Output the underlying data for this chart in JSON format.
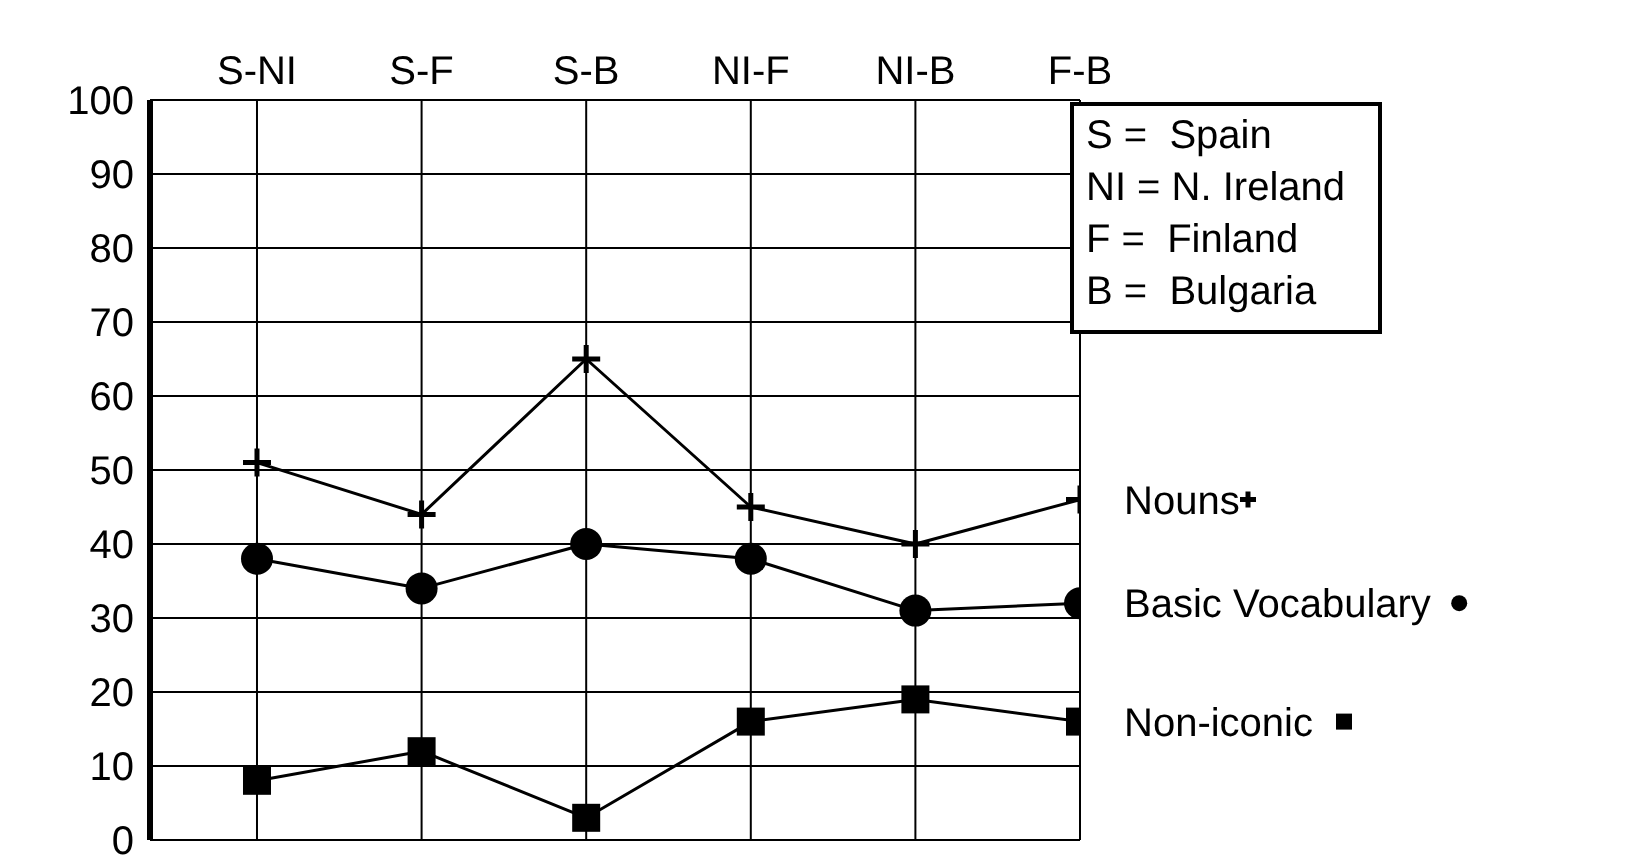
{
  "chart_data": {
    "type": "line",
    "categories": [
      "S-NI",
      "S-F",
      "S-B",
      "NI-F",
      "NI-B",
      "F-B"
    ],
    "series": [
      {
        "name": "Nouns",
        "color": "#000000",
        "marker": "cross",
        "values": [
          51,
          44,
          65,
          45,
          40,
          46
        ]
      },
      {
        "name": "Basic Vocabulary",
        "color": "#000000",
        "marker": "circle",
        "values": [
          38,
          34,
          40,
          38,
          31,
          32
        ]
      },
      {
        "name": "Non-iconic",
        "color": "#000000",
        "marker": "square",
        "values": [
          8,
          12,
          3,
          16,
          19,
          16
        ]
      }
    ],
    "ylim": [
      0,
      100
    ],
    "yticks": [
      0,
      10,
      20,
      30,
      40,
      50,
      60,
      70,
      80,
      90,
      100
    ],
    "grid": true,
    "legend": "right",
    "annotations": [
      "S =  Spain",
      "NI = N. Ireland",
      "F =  Finland",
      "B =  Bulgaria"
    ]
  }
}
